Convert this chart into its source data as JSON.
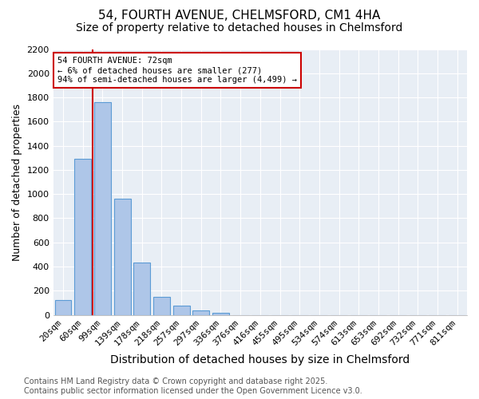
{
  "title": "54, FOURTH AVENUE, CHELMSFORD, CM1 4HA",
  "subtitle": "Size of property relative to detached houses in Chelmsford",
  "xlabel": "Distribution of detached houses by size in Chelmsford",
  "ylabel": "Number of detached properties",
  "bin_labels": [
    "20sqm",
    "60sqm",
    "99sqm",
    "139sqm",
    "178sqm",
    "218sqm",
    "257sqm",
    "297sqm",
    "336sqm",
    "376sqm",
    "416sqm",
    "455sqm",
    "495sqm",
    "534sqm",
    "574sqm",
    "613sqm",
    "653sqm",
    "692sqm",
    "732sqm",
    "771sqm",
    "811sqm"
  ],
  "bar_values": [
    120,
    1290,
    1760,
    960,
    430,
    150,
    75,
    35,
    20,
    0,
    0,
    0,
    0,
    0,
    0,
    0,
    0,
    0,
    0,
    0,
    0
  ],
  "bar_color": "#aec6e8",
  "bar_edge_color": "#5b9bd5",
  "ylim": [
    0,
    2200
  ],
  "yticks": [
    0,
    200,
    400,
    600,
    800,
    1000,
    1200,
    1400,
    1600,
    1800,
    2000,
    2200
  ],
  "vline_x_index": 1,
  "vline_color": "#cc0000",
  "annotation_title": "54 FOURTH AVENUE: 72sqm",
  "annotation_line1": "← 6% of detached houses are smaller (277)",
  "annotation_line2": "94% of semi-detached houses are larger (4,499) →",
  "annotation_box_color": "#cc0000",
  "annotation_text_color": "#000000",
  "background_color": "#ffffff",
  "plot_bg_color": "#e8eef5",
  "grid_color": "#ffffff",
  "footer_line1": "Contains HM Land Registry data © Crown copyright and database right 2025.",
  "footer_line2": "Contains public sector information licensed under the Open Government Licence v3.0.",
  "title_fontsize": 11,
  "subtitle_fontsize": 10,
  "xlabel_fontsize": 10,
  "ylabel_fontsize": 9,
  "tick_fontsize": 8,
  "footer_fontsize": 7
}
